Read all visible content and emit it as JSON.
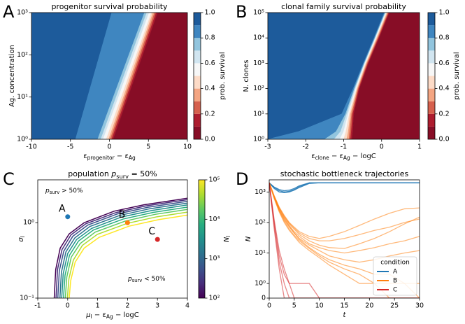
{
  "chart_data": [
    {
      "type": "contourf",
      "panel_label": "A",
      "title": "progenitor survival probability",
      "x_label": [
        "ε",
        {
          "sub": "progenitor"
        },
        " − ε",
        {
          "sub": "Ag"
        }
      ],
      "y_label": "Ag. concentration",
      "xlim": [
        -10,
        10
      ],
      "xticks": [
        -10,
        -5,
        0,
        5,
        10
      ],
      "yscale": "log",
      "ylim": [
        1,
        1000
      ],
      "yticks": [
        {
          "value": 1,
          "label": "10⁰"
        },
        {
          "value": 10,
          "label": "10¹"
        },
        {
          "value": 100,
          "label": "10²"
        },
        {
          "value": 1000,
          "label": "10³"
        }
      ],
      "levels": [
        0,
        0.1,
        0.2,
        0.3,
        0.4,
        0.5,
        0.6,
        0.7,
        0.8,
        0.9,
        1
      ],
      "colors": [
        "#870d26",
        "#ad1c2e",
        "#d6604d",
        "#f4a582",
        "#fddbc7",
        "#f7f7f7",
        "#d1e5f0",
        "#92c5de",
        "#3f86c0",
        "#1d5b9b"
      ],
      "contour_y": [
        1,
        1000
      ],
      "contours": [
        {
          "level": 0.1,
          "x": [
            0.5,
            6.2
          ]
        },
        {
          "level": 0.2,
          "x": [
            0.3,
            6.0
          ]
        },
        {
          "level": 0.3,
          "x": [
            0.1,
            5.8
          ]
        },
        {
          "level": 0.4,
          "x": [
            -0.1,
            5.6
          ]
        },
        {
          "level": 0.5,
          "x": [
            -0.4,
            5.4
          ]
        },
        {
          "level": 0.6,
          "x": [
            -0.8,
            5.1
          ]
        },
        {
          "level": 0.7,
          "x": [
            -1.1,
            4.8
          ]
        },
        {
          "level": 0.8,
          "x": [
            -1.5,
            4.5
          ]
        },
        {
          "level": 0.9,
          "x": [
            -4.35,
            0.3
          ]
        }
      ],
      "colorbar_label": "prob. survival",
      "colorbar_ticks": [
        {
          "value": 0,
          "label": "0.0"
        },
        0.2,
        0.4,
        0.6,
        0.8,
        {
          "value": 1,
          "label": "1.0"
        }
      ]
    },
    {
      "type": "contourf",
      "panel_label": "B",
      "title": "clonal family survival probability",
      "x_label": [
        "ε",
        {
          "sub": "clone"
        },
        " − ε",
        {
          "sub": "Ag"
        },
        " − logC"
      ],
      "y_label": "N. clones",
      "xlim": [
        -3,
        1
      ],
      "xticks": [
        -3,
        -2,
        -1,
        0,
        1
      ],
      "yscale": "log",
      "ylim": [
        1,
        100000
      ],
      "yticks": [
        {
          "value": 1,
          "label": "10⁰"
        },
        {
          "value": 10,
          "label": "10¹"
        },
        {
          "value": 100,
          "label": "10²"
        },
        {
          "value": 1000,
          "label": "10³"
        },
        {
          "value": 10000,
          "label": "10⁴"
        },
        {
          "value": 100000,
          "label": "10⁵"
        }
      ],
      "levels": [
        0,
        0.1,
        0.2,
        0.3,
        0.4,
        0.5,
        0.6,
        0.7,
        0.8,
        0.9,
        1
      ],
      "colors": [
        "#870d26",
        "#ad1c2e",
        "#d6604d",
        "#f4a582",
        "#fddbc7",
        "#f7f7f7",
        "#d1e5f0",
        "#92c5de",
        "#3f86c0",
        "#1d5b9b"
      ],
      "contour_y": [
        1,
        2,
        10,
        100,
        1000,
        10000,
        100000
      ],
      "contours": [
        {
          "level": 0.1,
          "x": [
            -0.78,
            -0.76,
            -0.73,
            -0.58,
            -0.34,
            -0.06,
            0.21
          ]
        },
        {
          "level": 0.2,
          "x": [
            -0.82,
            -0.8,
            -0.76,
            -0.6,
            -0.36,
            -0.08,
            0.19
          ]
        },
        {
          "level": 0.3,
          "x": [
            -0.86,
            -0.84,
            -0.79,
            -0.62,
            -0.38,
            -0.1,
            0.17
          ]
        },
        {
          "level": 0.4,
          "x": [
            -0.92,
            -0.88,
            -0.82,
            -0.64,
            -0.4,
            -0.12,
            0.15
          ]
        },
        {
          "level": 0.5,
          "x": [
            -1.0,
            -0.94,
            -0.85,
            -0.66,
            -0.42,
            -0.14,
            0.13
          ]
        },
        {
          "level": 0.6,
          "x": [
            -1.1,
            -1.0,
            -0.88,
            -0.68,
            -0.44,
            -0.16,
            0.11
          ]
        },
        {
          "level": 0.7,
          "x": [
            -1.25,
            -1.08,
            -0.92,
            -0.7,
            -0.45,
            -0.17,
            0.1
          ]
        },
        {
          "level": 0.8,
          "x": [
            -1.5,
            -1.2,
            -0.95,
            -0.72,
            -0.46,
            -0.18,
            0.09
          ]
        },
        {
          "level": 0.9,
          "x": [
            -3,
            -2.2,
            -1.05,
            -0.75,
            -0.48,
            -0.2,
            0.07
          ]
        }
      ],
      "colorbar_label": "prob. survival",
      "colorbar_ticks": [
        {
          "value": 0,
          "label": "0.0"
        },
        0.2,
        0.4,
        0.6,
        0.8,
        {
          "value": 1,
          "label": "1.0"
        }
      ]
    },
    {
      "type": "contour",
      "panel_label": "C",
      "title": [
        "population ",
        {
          "it": "p"
        },
        {
          "sub": "surv"
        },
        " = 50%"
      ],
      "x_label": [
        {
          "it": "μ"
        },
        {
          "sub": "l"
        },
        " − ε",
        {
          "sub": "Ag"
        },
        " − logC"
      ],
      "y_label": [
        {
          "it": "σ"
        },
        {
          "sub": "l"
        }
      ],
      "xlim": [
        -1,
        4
      ],
      "xticks": [
        -1,
        0,
        1,
        2,
        3,
        4
      ],
      "yscale": "log",
      "ylim": [
        0.1,
        3.7
      ],
      "yticks": [
        {
          "value": 0.1,
          "label": "10⁻¹"
        },
        {
          "value": 1,
          "label": "10⁰"
        }
      ],
      "series": [
        {
          "color": "#440154",
          "x": [
            -0.45,
            -0.4,
            -0.25,
            0.05,
            0.55,
            1.55,
            2.55,
            4
          ],
          "values": [
            0.1,
            0.24,
            0.46,
            0.71,
            1.0,
            1.42,
            1.73,
            2.11
          ]
        },
        {
          "color": "#472d7b",
          "x": [
            -0.39,
            -0.34,
            -0.19,
            0.11,
            0.61,
            1.61,
            2.61,
            4
          ],
          "values": [
            0.1,
            0.24,
            0.44,
            0.69,
            0.97,
            1.36,
            1.67,
            2.02
          ]
        },
        {
          "color": "#3b528b",
          "x": [
            -0.33,
            -0.28,
            -0.13,
            0.17,
            0.67,
            1.67,
            2.67,
            4
          ],
          "values": [
            0.1,
            0.23,
            0.42,
            0.66,
            0.93,
            1.31,
            1.6,
            1.92
          ]
        },
        {
          "color": "#2c728e",
          "x": [
            -0.26,
            -0.21,
            -0.06,
            0.24,
            0.74,
            1.74,
            2.74,
            4
          ],
          "values": [
            0.1,
            0.22,
            0.41,
            0.63,
            0.89,
            1.25,
            1.53,
            1.82
          ]
        },
        {
          "color": "#21918c",
          "x": [
            -0.2,
            -0.15,
            0,
            0.3,
            0.8,
            1.8,
            2.8,
            4
          ],
          "values": [
            0.1,
            0.21,
            0.39,
            0.6,
            0.84,
            1.19,
            1.45,
            1.72
          ]
        },
        {
          "color": "#28ae80",
          "x": [
            -0.14,
            -0.09,
            0.06,
            0.36,
            0.86,
            1.86,
            2.86,
            4
          ],
          "values": [
            0.1,
            0.2,
            0.37,
            0.57,
            0.8,
            1.12,
            1.37,
            1.61
          ]
        },
        {
          "color": "#5ec962",
          "x": [
            -0.08,
            -0.03,
            0.12,
            0.42,
            0.92,
            1.92,
            2.92,
            4
          ],
          "values": [
            0.1,
            0.19,
            0.35,
            0.53,
            0.75,
            1.05,
            1.29,
            1.5
          ]
        },
        {
          "color": "#addc30",
          "x": [
            -0.01,
            0.04,
            0.19,
            0.49,
            0.99,
            1.99,
            2.99,
            4
          ],
          "values": [
            0.1,
            0.18,
            0.32,
            0.5,
            0.7,
            0.98,
            1.2,
            1.38
          ]
        },
        {
          "color": "#fde725",
          "x": [
            0.05,
            0.1,
            0.25,
            0.55,
            1.05,
            2.05,
            3.05,
            4
          ],
          "values": [
            0.1,
            0.17,
            0.3,
            0.46,
            0.64,
            0.9,
            1.1,
            1.26
          ]
        }
      ],
      "points": [
        {
          "label": "A",
          "x": 0,
          "y": 1.2,
          "color": "#1f77b4"
        },
        {
          "label": "B",
          "x": 2,
          "y": 1.0,
          "color": "#ff7f0e"
        },
        {
          "label": "C",
          "x": 3,
          "y": 0.6,
          "color": "#d62728"
        }
      ],
      "annotations": [
        {
          "text": [
            {
              "it": "p"
            },
            {
              "sub": "surv"
            },
            " > 50%"
          ],
          "color": "#1f77b4"
        },
        {
          "text": [
            {
              "it": "p"
            },
            {
              "sub": "surv"
            },
            " < 50%"
          ],
          "color": "#d62728"
        }
      ],
      "colorbar_label": [
        {
          "it": "N"
        },
        {
          "sub": "l"
        }
      ],
      "colorbar_scale": "log",
      "clim": [
        100,
        100000
      ],
      "colorbar_ticks": [
        {
          "value": 100,
          "label": "10²"
        },
        {
          "value": 1000,
          "label": "10³"
        },
        {
          "value": 10000,
          "label": "10⁴"
        },
        {
          "value": 100000,
          "label": "10⁵"
        }
      ]
    },
    {
      "type": "line",
      "panel_label": "D",
      "title": "stochastic bottleneck trajectories",
      "x_label": [
        {
          "it": "t"
        }
      ],
      "y_label": [
        {
          "it": "N"
        }
      ],
      "xlim": [
        0,
        30
      ],
      "xticks": [
        0,
        5,
        10,
        15,
        20,
        25,
        30
      ],
      "yscale": "symlog",
      "linthresh": 1,
      "ylim": [
        0,
        2500
      ],
      "yticks": [
        0,
        {
          "value": 1,
          "label": "10⁰"
        },
        {
          "value": 10,
          "label": "10¹"
        },
        {
          "value": 100,
          "label": "10²"
        },
        {
          "value": 1000,
          "label": "10³"
        }
      ],
      "legend": "lower right",
      "legend_title": "condition",
      "x": [
        0,
        1,
        2,
        3,
        4,
        5,
        6,
        8,
        10,
        12,
        15,
        18,
        21,
        24,
        27,
        30
      ],
      "series": [
        {
          "name": "A",
          "color": "#1f77b4",
          "trajectories": [
            [
              2000,
              1400,
              1100,
              1000,
              1050,
              1200,
              1500,
              2000,
              2000,
              2000,
              2000,
              2000,
              2000,
              2000,
              2000,
              2000
            ],
            [
              2000,
              1300,
              1000,
              950,
              1000,
              1150,
              1400,
              1900,
              2000,
              2000,
              2000,
              2000,
              2000,
              2000,
              2000,
              2000
            ],
            [
              2000,
              1450,
              1200,
              1100,
              1150,
              1300,
              1600,
              2000,
              2000,
              2000,
              2000,
              2000,
              2000,
              2000,
              2000,
              2000
            ]
          ]
        },
        {
          "name": "B",
          "color": "#ff7f0e",
          "trajectories": [
            [
              2000,
              700,
              300,
              150,
              90,
              60,
              40,
              25,
              18,
              15,
              14,
              20,
              30,
              50,
              90,
              150
            ],
            [
              2000,
              650,
              250,
              120,
              70,
              45,
              30,
              18,
              12,
              8,
              6,
              5,
              6,
              8,
              10,
              12
            ],
            [
              2000,
              750,
              320,
              170,
              100,
              70,
              50,
              35,
              30,
              35,
              50,
              80,
              130,
              200,
              280,
              300
            ],
            [
              2000,
              600,
              220,
              100,
              55,
              35,
              22,
              12,
              7,
              4,
              2,
              1,
              1,
              0,
              0,
              0
            ],
            [
              2000,
              700,
              280,
              140,
              80,
              50,
              35,
              20,
              15,
              12,
              10,
              12,
              15,
              20,
              25,
              35
            ],
            [
              2000,
              680,
              260,
              130,
              75,
              45,
              28,
              15,
              9,
              6,
              4,
              3,
              2,
              2,
              1,
              1
            ],
            [
              2000,
              720,
              300,
              160,
              95,
              65,
              45,
              30,
              25,
              25,
              30,
              40,
              55,
              70,
              100,
              130
            ],
            [
              2000,
              640,
              240,
              110,
              60,
              38,
              25,
              14,
              8,
              5,
              3,
              2,
              1,
              1,
              1,
              0
            ]
          ]
        },
        {
          "name": "C",
          "color": "#d62728",
          "trajectories": [
            [
              2000,
              80,
              5,
              1,
              0,
              0,
              0,
              0,
              0,
              0,
              0,
              0,
              0,
              0,
              0,
              0
            ],
            [
              2000,
              100,
              8,
              2,
              1,
              0,
              0,
              0,
              0,
              0,
              0,
              0,
              0,
              0,
              0,
              0
            ],
            [
              2000,
              60,
              3,
              0,
              0,
              0,
              0,
              0,
              0,
              0,
              0,
              0,
              0,
              0,
              0,
              0
            ],
            [
              2000,
              120,
              12,
              3,
              1,
              1,
              1,
              1,
              0,
              0,
              0,
              0,
              0,
              0,
              0,
              0
            ]
          ]
        }
      ]
    }
  ]
}
